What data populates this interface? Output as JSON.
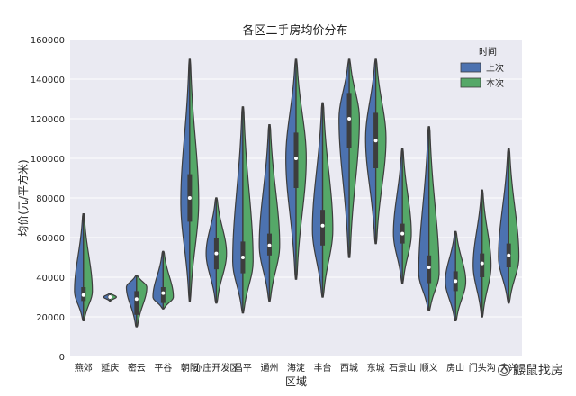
{
  "chart_data": {
    "type": "violin",
    "title": "各区二手房均价分布",
    "xlabel": "区域",
    "ylabel": "均价(元/平方米)",
    "ylim": [
      0,
      160000
    ],
    "yticks": [
      0,
      20000,
      40000,
      60000,
      80000,
      100000,
      120000,
      140000,
      160000
    ],
    "grid": true,
    "legend": {
      "title": "时间",
      "position": "top-right",
      "entries": [
        {
          "label": "上次",
          "color": "#4c72b0"
        },
        {
          "label": "本次",
          "color": "#55a868"
        }
      ]
    },
    "categories": [
      "燕郊",
      "延庆",
      "密云",
      "平谷",
      "朝阳",
      "亦庄开发区",
      "昌平",
      "通州",
      "海淀",
      "丰台",
      "西城",
      "东城",
      "石景山",
      "顺义",
      "房山",
      "门头沟",
      "大兴"
    ],
    "tick_labels": [
      "燕郊",
      "延庆",
      "密云",
      "平谷",
      "朝阳",
      "亦庄开发区",
      "昌平",
      "通州",
      "海淀",
      "丰台",
      "西城",
      "东城",
      "石景山",
      "顺义",
      "房山",
      "门头沟",
      "大兴"
    ],
    "series": [
      {
        "name": "上次",
        "color": "#4c72b0",
        "min": [
          18000,
          28000,
          15000,
          24000,
          28000,
          27000,
          22000,
          28000,
          39000,
          30000,
          50000,
          57000,
          37000,
          23000,
          18000,
          20000,
          27000
        ],
        "q1": [
          28000,
          29000,
          21000,
          27000,
          68000,
          44000,
          42000,
          51000,
          85000,
          56000,
          105000,
          95000,
          57000,
          37000,
          33000,
          40000,
          45000
        ],
        "median": [
          31000,
          30000,
          29000,
          32000,
          80000,
          52000,
          50000,
          56000,
          100000,
          66000,
          120000,
          109000,
          62000,
          45000,
          38000,
          47000,
          51000
        ],
        "q3": [
          35000,
          31000,
          33000,
          35000,
          92000,
          60000,
          58000,
          62000,
          113000,
          74000,
          133000,
          123000,
          67000,
          51000,
          43000,
          52000,
          57000
        ],
        "max": [
          72000,
          32000,
          41000,
          53000,
          150000,
          80000,
          126000,
          117000,
          150000,
          128000,
          150000,
          150000,
          105000,
          116000,
          63000,
          84000,
          105000
        ],
        "peak": [
          33000,
          30000,
          35000,
          30000,
          78000,
          52000,
          48000,
          56000,
          100000,
          64000,
          120000,
          110000,
          62000,
          42000,
          38000,
          46000,
          50000
        ]
      },
      {
        "name": "本次",
        "color": "#55a868",
        "min": [
          18000,
          28000,
          15000,
          24000,
          28000,
          27000,
          22000,
          28000,
          39000,
          30000,
          50000,
          57000,
          37000,
          23000,
          18000,
          20000,
          27000
        ],
        "q1": [
          28000,
          29000,
          21000,
          27000,
          68000,
          44000,
          42000,
          51000,
          85000,
          56000,
          105000,
          95000,
          57000,
          37000,
          33000,
          40000,
          45000
        ],
        "median": [
          31000,
          30000,
          29000,
          32000,
          80000,
          52000,
          50000,
          56000,
          100000,
          66000,
          120000,
          109000,
          62000,
          45000,
          38000,
          47000,
          51000
        ],
        "q3": [
          35000,
          31000,
          33000,
          35000,
          92000,
          60000,
          58000,
          62000,
          113000,
          74000,
          133000,
          123000,
          67000,
          51000,
          43000,
          52000,
          57000
        ],
        "max": [
          72000,
          32000,
          41000,
          53000,
          150000,
          80000,
          126000,
          117000,
          150000,
          128000,
          150000,
          150000,
          105000,
          116000,
          63000,
          84000,
          105000
        ],
        "peak": [
          33000,
          30000,
          35000,
          30000,
          78000,
          52000,
          48000,
          56000,
          100000,
          64000,
          120000,
          110000,
          62000,
          42000,
          38000,
          46000,
          50000
        ]
      }
    ],
    "relative_width": [
      0.7,
      0.5,
      0.8,
      0.8,
      0.7,
      0.8,
      0.8,
      0.8,
      0.8,
      0.8,
      0.8,
      0.8,
      0.7,
      0.8,
      0.8,
      0.7,
      0.8
    ]
  },
  "watermark": {
    "text": "鼹鼠找房",
    "icon": "wechat-search-icon"
  }
}
